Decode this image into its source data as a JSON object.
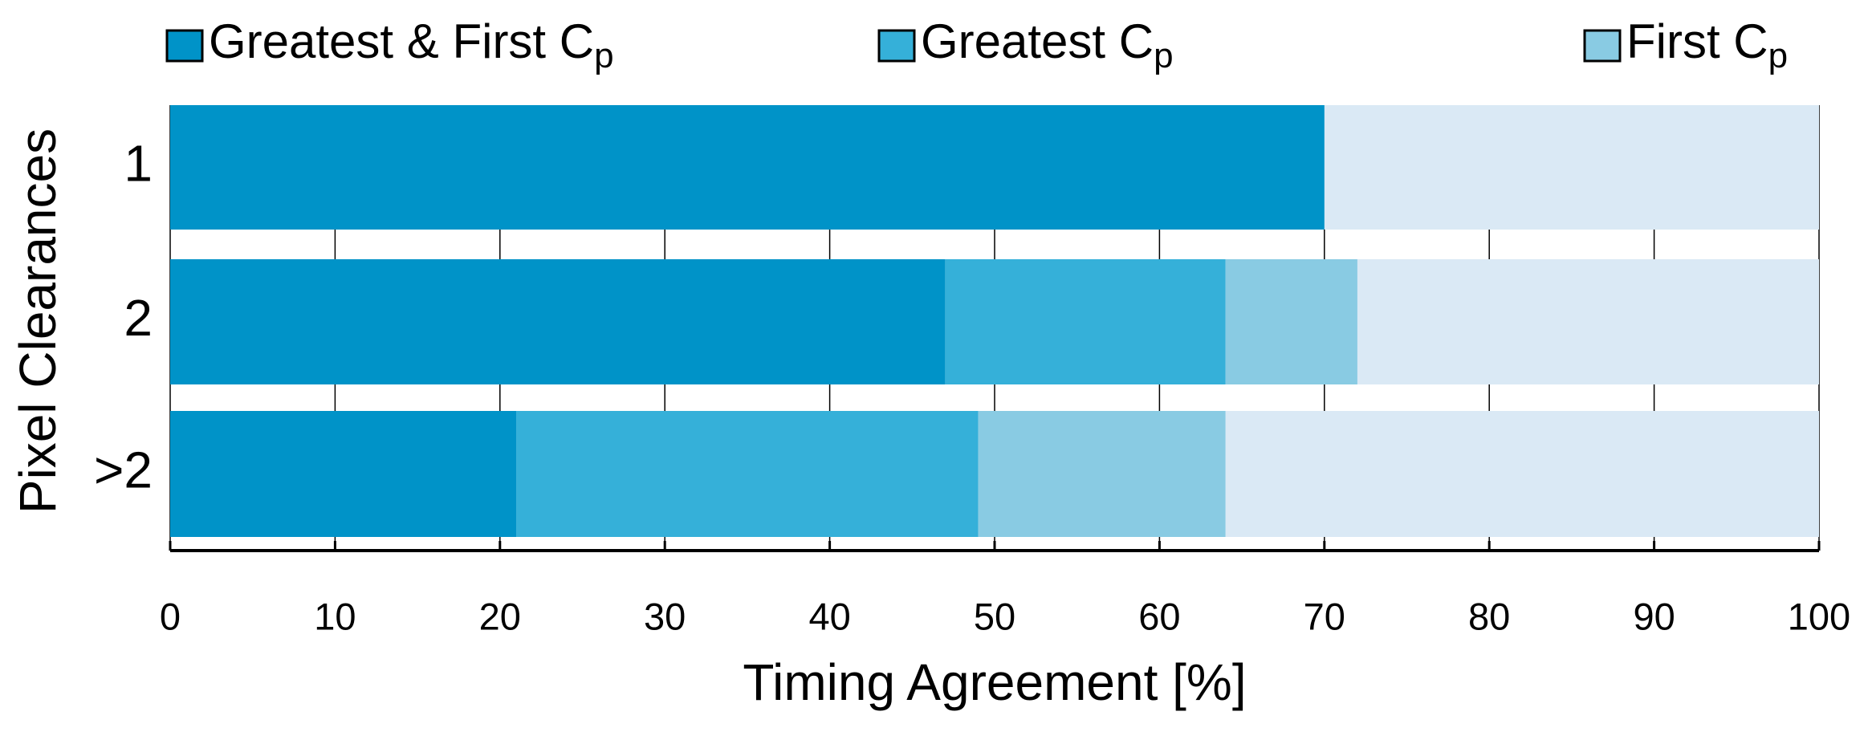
{
  "chart_data": {
    "type": "stacked-barh",
    "categories": [
      "1",
      "2",
      ">2"
    ],
    "series": [
      {
        "name": "Greatest & First Cp",
        "color": "#0093c8",
        "values": [
          70,
          47,
          21
        ]
      },
      {
        "name": "Greatest Cp",
        "color": "#35b0d9",
        "values": [
          0,
          17,
          28
        ]
      },
      {
        "name": "First Cp",
        "color": "#89cbe3",
        "values": [
          0,
          8,
          15
        ]
      }
    ],
    "bar_background": "#dae9f5",
    "xlabel": "Timing Agreement [%]",
    "ylabel": "Pixel Clearances",
    "xlim": [
      0,
      100
    ],
    "xticks": [
      0,
      10,
      20,
      30,
      40,
      50,
      60,
      70,
      80,
      90,
      100
    ],
    "grid": true,
    "legend": "top"
  }
}
